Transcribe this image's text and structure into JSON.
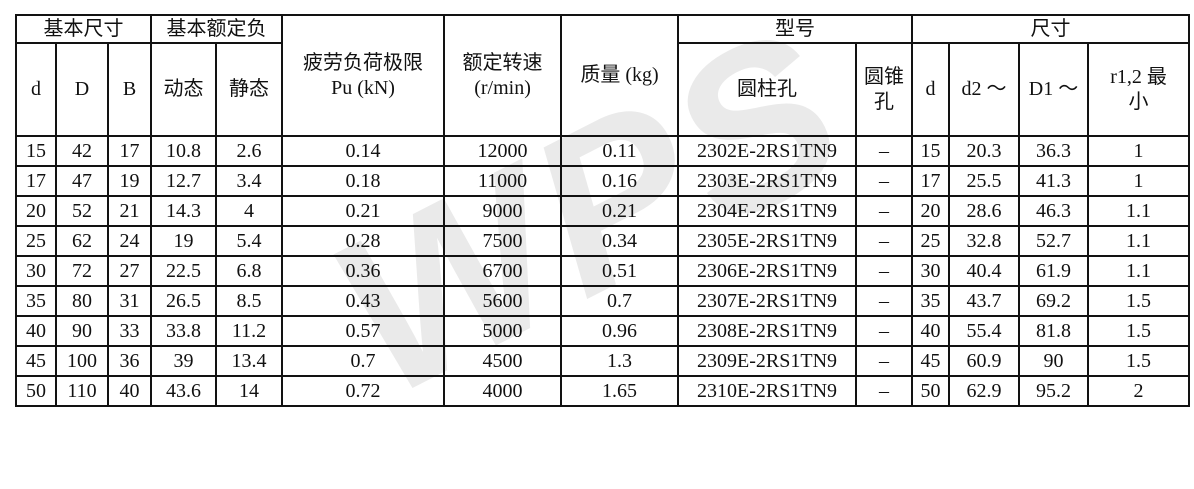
{
  "watermark": {
    "text": "WPS"
  },
  "table": {
    "header": {
      "basic_dimensions": "基本尺寸",
      "basic_load_rating": "基本额定负",
      "fatigue_load_limit": "疲劳负荷极限\nPu (kN)",
      "rated_speed": "额定转速\n(r/min)",
      "mass": "质量 (kg)",
      "model": "型号",
      "dimensions": "尺寸"
    },
    "subheader": {
      "d": "d",
      "D": "D",
      "B": "B",
      "dynamic": "动态",
      "static": "静态",
      "cylindrical_bore": "圆柱孔",
      "tapered_bore": "圆锥\n孔",
      "d_right": "d",
      "d2": "d2 ～",
      "D1": "D1 ～",
      "r12_min": "r1,2 最\n小"
    },
    "rows": [
      [
        "15",
        "42",
        "17",
        "10.8",
        "2.6",
        "0.14",
        "12000",
        "0.11",
        "2302E-2RS1TN9",
        "–",
        "15",
        "20.3",
        "36.3",
        "1"
      ],
      [
        "17",
        "47",
        "19",
        "12.7",
        "3.4",
        "0.18",
        "11000",
        "0.16",
        "2303E-2RS1TN9",
        "–",
        "17",
        "25.5",
        "41.3",
        "1"
      ],
      [
        "20",
        "52",
        "21",
        "14.3",
        "4",
        "0.21",
        "9000",
        "0.21",
        "2304E-2RS1TN9",
        "–",
        "20",
        "28.6",
        "46.3",
        "1.1"
      ],
      [
        "25",
        "62",
        "24",
        "19",
        "5.4",
        "0.28",
        "7500",
        "0.34",
        "2305E-2RS1TN9",
        "–",
        "25",
        "32.8",
        "52.7",
        "1.1"
      ],
      [
        "30",
        "72",
        "27",
        "22.5",
        "6.8",
        "0.36",
        "6700",
        "0.51",
        "2306E-2RS1TN9",
        "–",
        "30",
        "40.4",
        "61.9",
        "1.1"
      ],
      [
        "35",
        "80",
        "31",
        "26.5",
        "8.5",
        "0.43",
        "5600",
        "0.7",
        "2307E-2RS1TN9",
        "–",
        "35",
        "43.7",
        "69.2",
        "1.5"
      ],
      [
        "40",
        "90",
        "33",
        "33.8",
        "11.2",
        "0.57",
        "5000",
        "0.96",
        "2308E-2RS1TN9",
        "–",
        "40",
        "55.4",
        "81.8",
        "1.5"
      ],
      [
        "45",
        "100",
        "36",
        "39",
        "13.4",
        "0.7",
        "4500",
        "1.3",
        "2309E-2RS1TN9",
        "–",
        "45",
        "60.9",
        "90",
        "1.5"
      ],
      [
        "50",
        "110",
        "40",
        "43.6",
        "14",
        "0.72",
        "4000",
        "1.65",
        "2310E-2RS1TN9",
        "–",
        "50",
        "62.9",
        "95.2",
        "2"
      ]
    ]
  }
}
